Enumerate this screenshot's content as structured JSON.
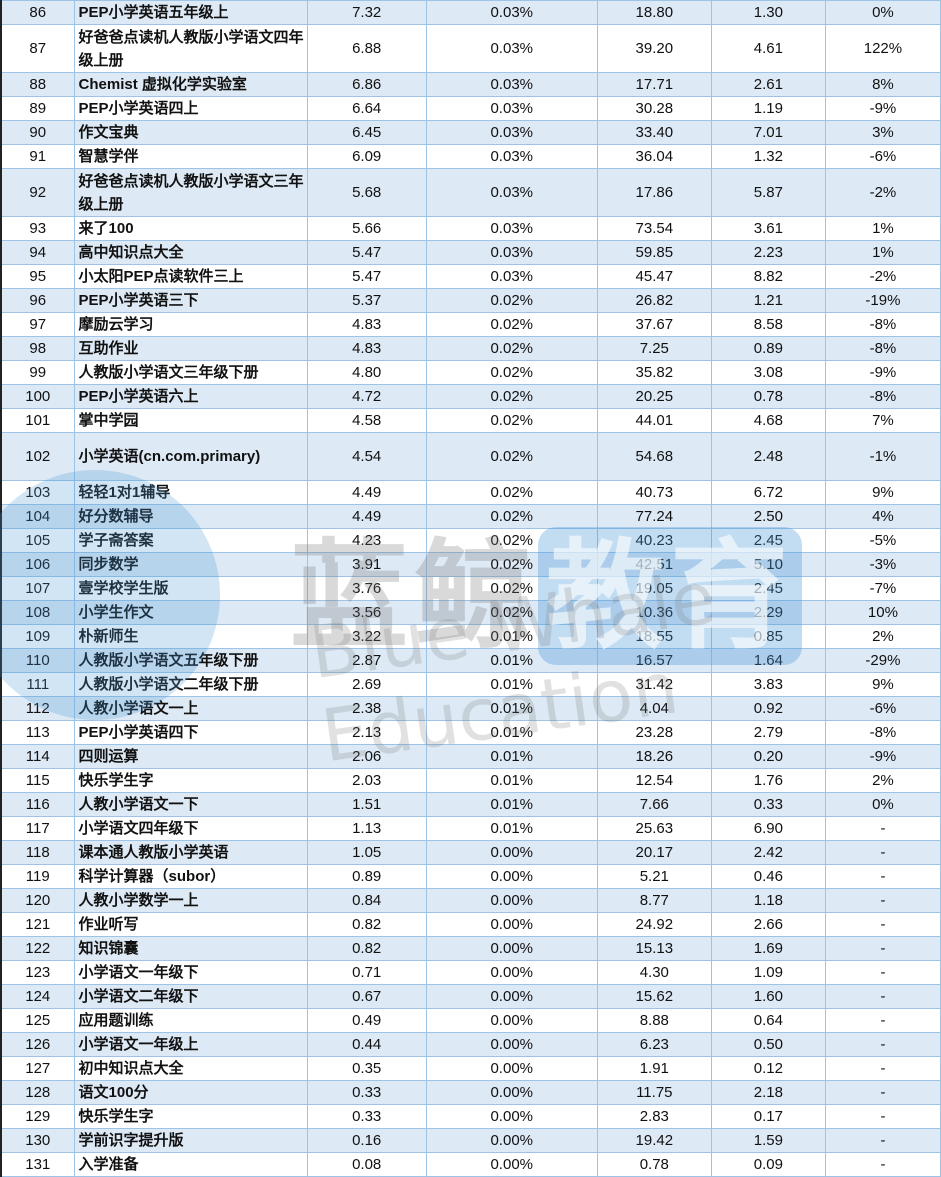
{
  "colors": {
    "row_alt": "#dde9f5",
    "border": "#9dc3e6",
    "watermark_blue": "#4696d7"
  },
  "watermark": {
    "cn": "蓝鲸",
    "cn_box": "教育",
    "en": "Blue Whale Education"
  },
  "rows": [
    [
      "86",
      "PEP小学英语五年级上",
      "7.32",
      "0.03%",
      "18.80",
      "1.30",
      "0%"
    ],
    [
      "87",
      "好爸爸点读机人教版小学语文四年级上册",
      "6.88",
      "0.03%",
      "39.20",
      "4.61",
      "122%"
    ],
    [
      "88",
      "Chemist 虚拟化学实验室",
      "6.86",
      "0.03%",
      "17.71",
      "2.61",
      "8%"
    ],
    [
      "89",
      "PEP小学英语四上",
      "6.64",
      "0.03%",
      "30.28",
      "1.19",
      "-9%"
    ],
    [
      "90",
      "作文宝典",
      "6.45",
      "0.03%",
      "33.40",
      "7.01",
      "3%"
    ],
    [
      "91",
      "智慧学伴",
      "6.09",
      "0.03%",
      "36.04",
      "1.32",
      "-6%"
    ],
    [
      "92",
      "好爸爸点读机人教版小学语文三年级上册",
      "5.68",
      "0.03%",
      "17.86",
      "5.87",
      "-2%"
    ],
    [
      "93",
      "来了100",
      "5.66",
      "0.03%",
      "73.54",
      "3.61",
      "1%"
    ],
    [
      "94",
      "高中知识点大全",
      "5.47",
      "0.03%",
      "59.85",
      "2.23",
      "1%"
    ],
    [
      "95",
      "小太阳PEP点读软件三上",
      "5.47",
      "0.03%",
      "45.47",
      "8.82",
      "-2%"
    ],
    [
      "96",
      "PEP小学英语三下",
      "5.37",
      "0.02%",
      "26.82",
      "1.21",
      "-19%"
    ],
    [
      "97",
      "摩励云学习",
      "4.83",
      "0.02%",
      "37.67",
      "8.58",
      "-8%"
    ],
    [
      "98",
      "互助作业",
      "4.83",
      "0.02%",
      "7.25",
      "0.89",
      "-8%"
    ],
    [
      "99",
      "人教版小学语文三年级下册",
      "4.80",
      "0.02%",
      "35.82",
      "3.08",
      "-9%"
    ],
    [
      "100",
      "PEP小学英语六上",
      "4.72",
      "0.02%",
      "20.25",
      "0.78",
      "-8%"
    ],
    [
      "101",
      "掌中学园",
      "4.58",
      "0.02%",
      "44.01",
      "4.68",
      "7%"
    ],
    [
      "102",
      "小学英语(cn.com.primary)",
      "4.54",
      "0.02%",
      "54.68",
      "2.48",
      "-1%"
    ],
    [
      "103",
      "轻轻1对1辅导",
      "4.49",
      "0.02%",
      "40.73",
      "6.72",
      "9%"
    ],
    [
      "104",
      "好分数辅导",
      "4.49",
      "0.02%",
      "77.24",
      "2.50",
      "4%"
    ],
    [
      "105",
      "学子斋答案",
      "4.23",
      "0.02%",
      "40.23",
      "2.45",
      "-5%"
    ],
    [
      "106",
      "同步数学",
      "3.91",
      "0.02%",
      "42.51",
      "5.10",
      "-3%"
    ],
    [
      "107",
      "壹学校学生版",
      "3.76",
      "0.02%",
      "19.05",
      "2.45",
      "-7%"
    ],
    [
      "108",
      "小学生作文",
      "3.56",
      "0.02%",
      "10.36",
      "2.29",
      "10%"
    ],
    [
      "109",
      "朴新师生",
      "3.22",
      "0.01%",
      "18.55",
      "0.85",
      "2%"
    ],
    [
      "110",
      "人教版小学语文五年级下册",
      "2.87",
      "0.01%",
      "16.57",
      "1.64",
      "-29%"
    ],
    [
      "111",
      "人教版小学语文二年级下册",
      "2.69",
      "0.01%",
      "31.42",
      "3.83",
      "9%"
    ],
    [
      "112",
      "人教小学语文一上",
      "2.38",
      "0.01%",
      "4.04",
      "0.92",
      "-6%"
    ],
    [
      "113",
      "PEP小学英语四下",
      "2.13",
      "0.01%",
      "23.28",
      "2.79",
      "-8%"
    ],
    [
      "114",
      "四则运算",
      "2.06",
      "0.01%",
      "18.26",
      "0.20",
      "-9%"
    ],
    [
      "115",
      "快乐学生字",
      "2.03",
      "0.01%",
      "12.54",
      "1.76",
      "2%"
    ],
    [
      "116",
      "人教小学语文一下",
      "1.51",
      "0.01%",
      "7.66",
      "0.33",
      "0%"
    ],
    [
      "117",
      "小学语文四年级下",
      "1.13",
      "0.01%",
      "25.63",
      "6.90",
      "-"
    ],
    [
      "118",
      "课本通人教版小学英语",
      "1.05",
      "0.00%",
      "20.17",
      "2.42",
      "-"
    ],
    [
      "119",
      "科学计算器（subor）",
      "0.89",
      "0.00%",
      "5.21",
      "0.46",
      "-"
    ],
    [
      "120",
      "人教小学数学一上",
      "0.84",
      "0.00%",
      "8.77",
      "1.18",
      "-"
    ],
    [
      "121",
      "作业听写",
      "0.82",
      "0.00%",
      "24.92",
      "2.66",
      "-"
    ],
    [
      "122",
      "知识锦囊",
      "0.82",
      "0.00%",
      "15.13",
      "1.69",
      "-"
    ],
    [
      "123",
      "小学语文一年级下",
      "0.71",
      "0.00%",
      "4.30",
      "1.09",
      "-"
    ],
    [
      "124",
      "小学语文二年级下",
      "0.67",
      "0.00%",
      "15.62",
      "1.60",
      "-"
    ],
    [
      "125",
      "应用题训练",
      "0.49",
      "0.00%",
      "8.88",
      "0.64",
      "-"
    ],
    [
      "126",
      "小学语文一年级上",
      "0.44",
      "0.00%",
      "6.23",
      "0.50",
      "-"
    ],
    [
      "127",
      "初中知识点大全",
      "0.35",
      "0.00%",
      "1.91",
      "0.12",
      "-"
    ],
    [
      "128",
      "语文100分",
      "0.33",
      "0.00%",
      "11.75",
      "2.18",
      "-"
    ],
    [
      "129",
      "快乐学生字",
      "0.33",
      "0.00%",
      "2.83",
      "0.17",
      "-"
    ],
    [
      "130",
      "学前识字提升版",
      "0.16",
      "0.00%",
      "19.42",
      "1.59",
      "-"
    ],
    [
      "131",
      "入学准备",
      "0.08",
      "0.00%",
      "0.78",
      "0.09",
      "-"
    ]
  ]
}
